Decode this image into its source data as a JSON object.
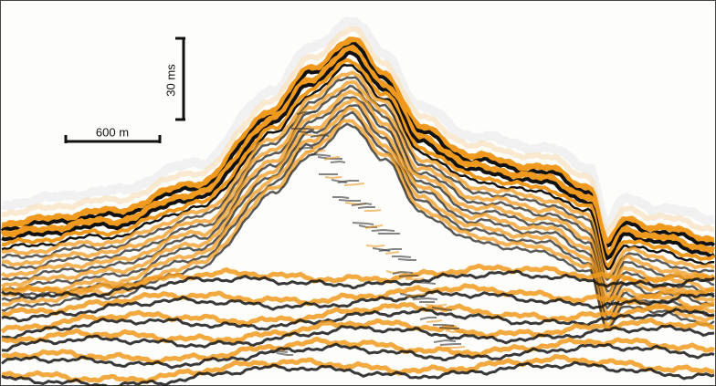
{
  "scale_bars": {
    "vertical": {
      "label": "30 ms"
    },
    "horizontal": {
      "label": "600 m"
    }
  }
}
